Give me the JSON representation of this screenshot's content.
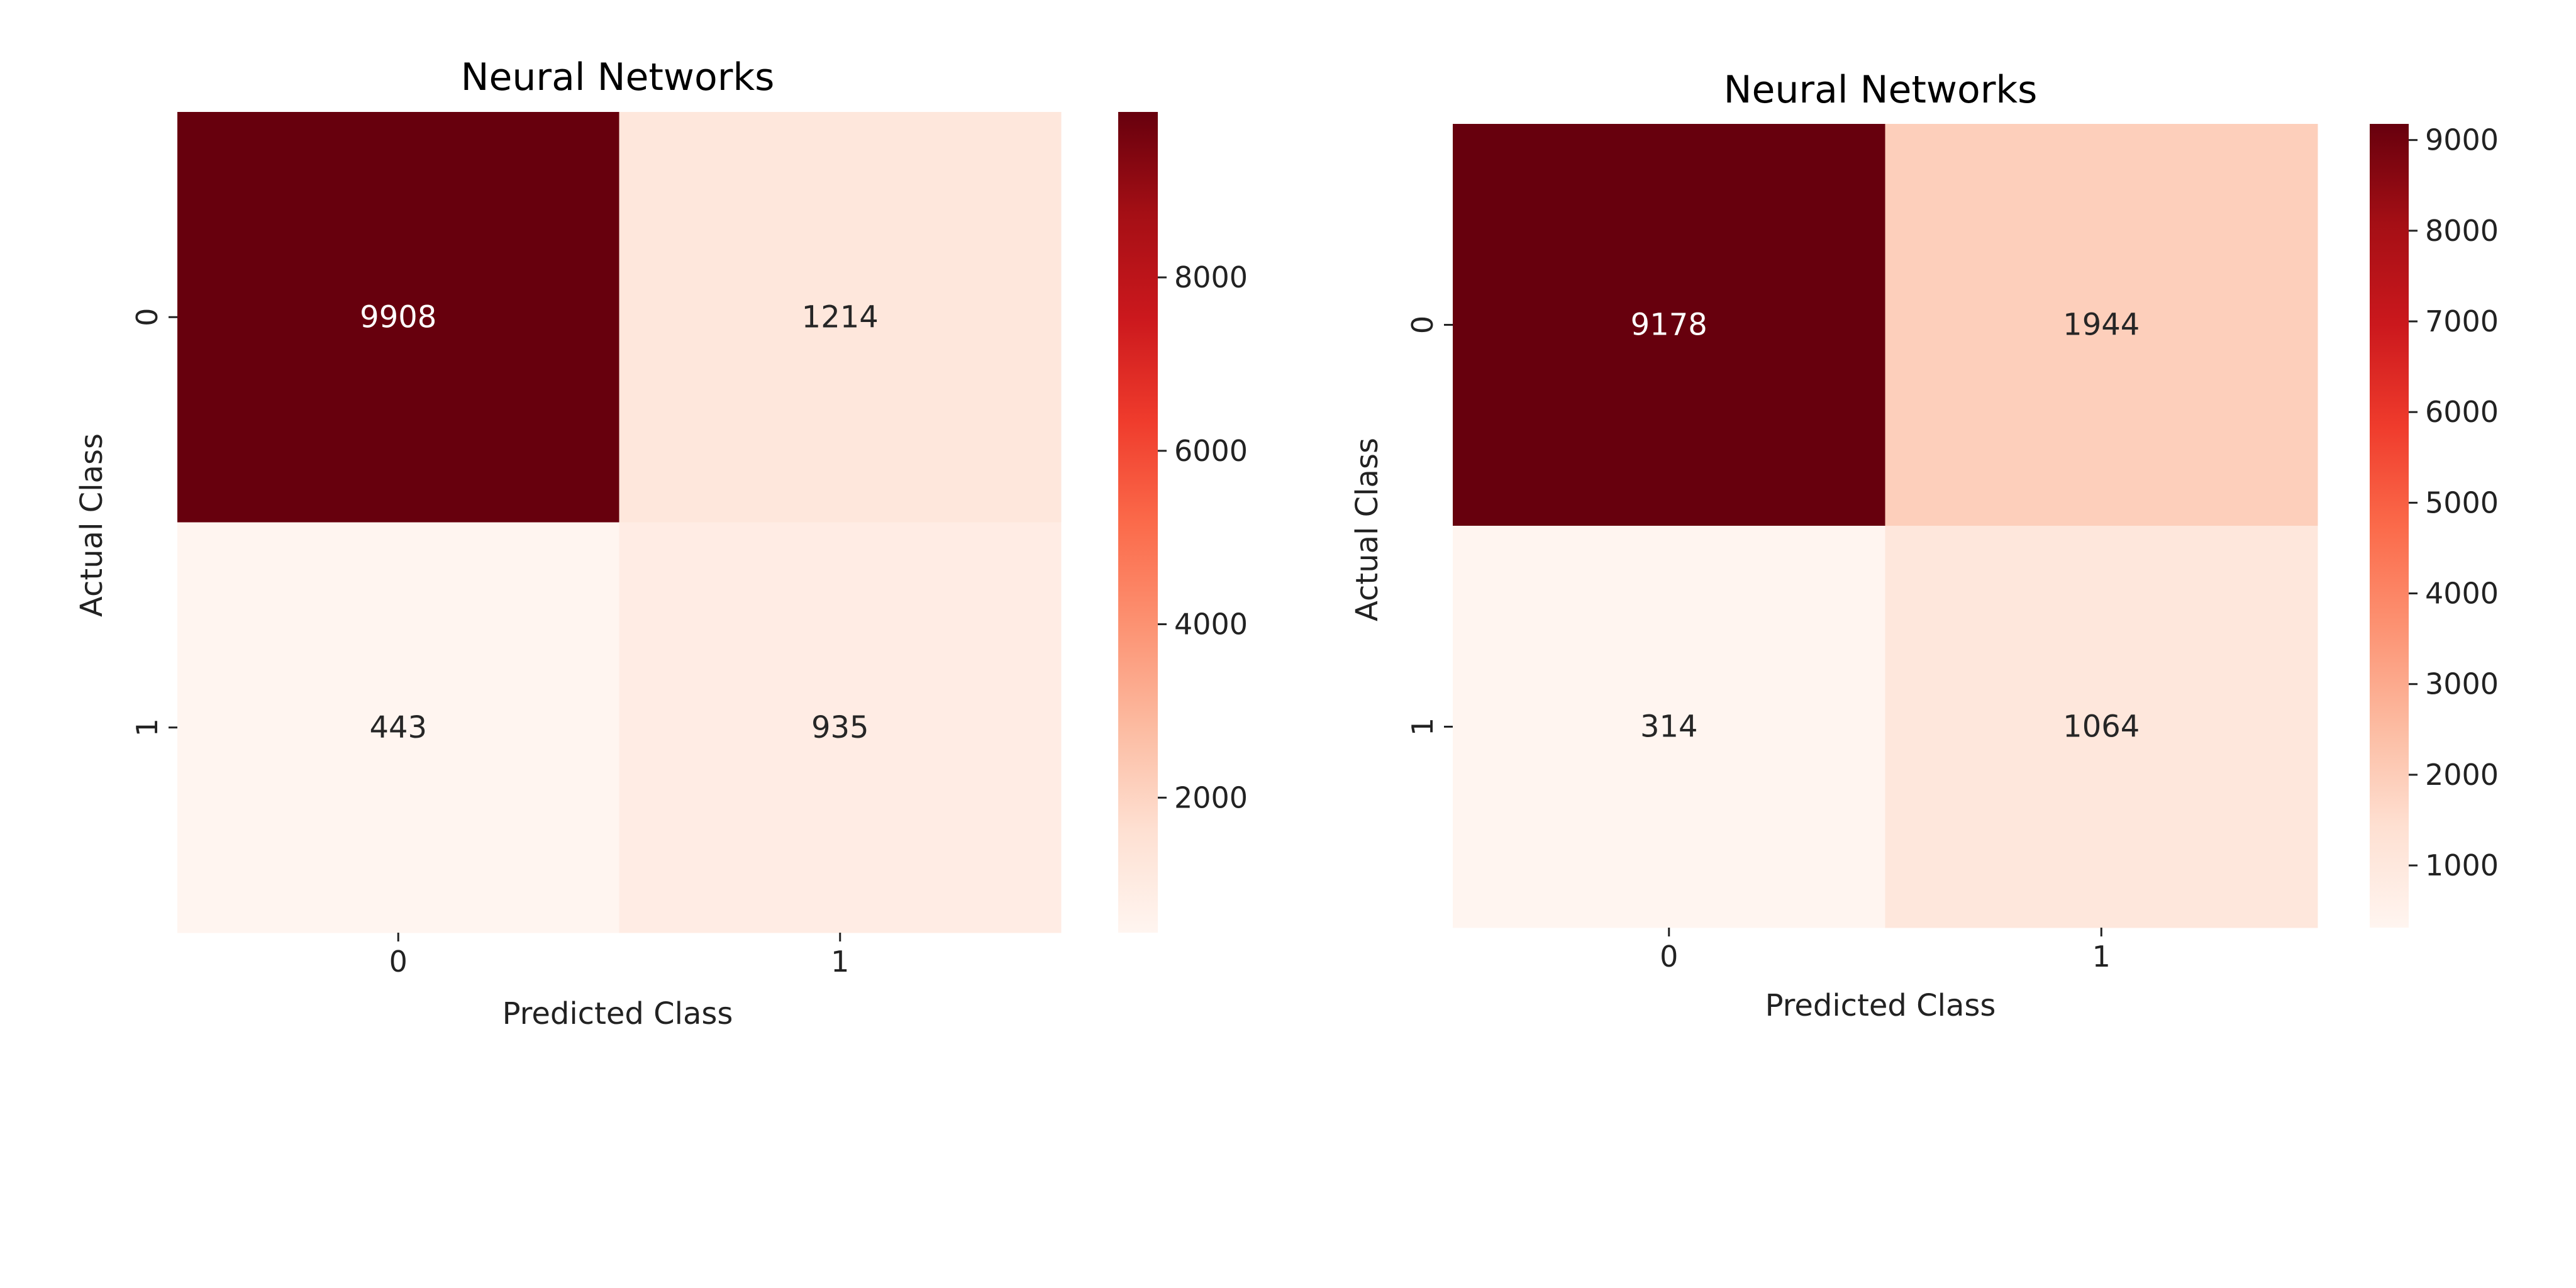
{
  "chart_data": [
    {
      "type": "heatmap",
      "title": "Neural Networks",
      "xlabel": "Predicted Class",
      "ylabel": "Actual Class",
      "x_categories": [
        "0",
        "1"
      ],
      "y_categories": [
        "0",
        "1"
      ],
      "values": [
        [
          9908,
          1214
        ],
        [
          443,
          935
        ]
      ],
      "colormap": "Reds",
      "colorbar": {
        "range": [
          443,
          9908
        ],
        "ticks": [
          2000,
          4000,
          6000,
          8000
        ],
        "tick_labels": [
          "2000",
          "4000",
          "6000",
          "8000"
        ]
      }
    },
    {
      "type": "heatmap",
      "title": "Neural Networks",
      "xlabel": "Predicted Class",
      "ylabel": "Actual Class",
      "x_categories": [
        "0",
        "1"
      ],
      "y_categories": [
        "0",
        "1"
      ],
      "values": [
        [
          9178,
          1944
        ],
        [
          314,
          1064
        ]
      ],
      "colormap": "Reds",
      "colorbar": {
        "range": [
          314,
          9178
        ],
        "ticks": [
          1000,
          2000,
          3000,
          4000,
          5000,
          6000,
          7000,
          8000,
          9000
        ],
        "tick_labels": [
          "1000",
          "2000",
          "3000",
          "4000",
          "5000",
          "6000",
          "7000",
          "8000",
          "9000"
        ]
      }
    }
  ]
}
